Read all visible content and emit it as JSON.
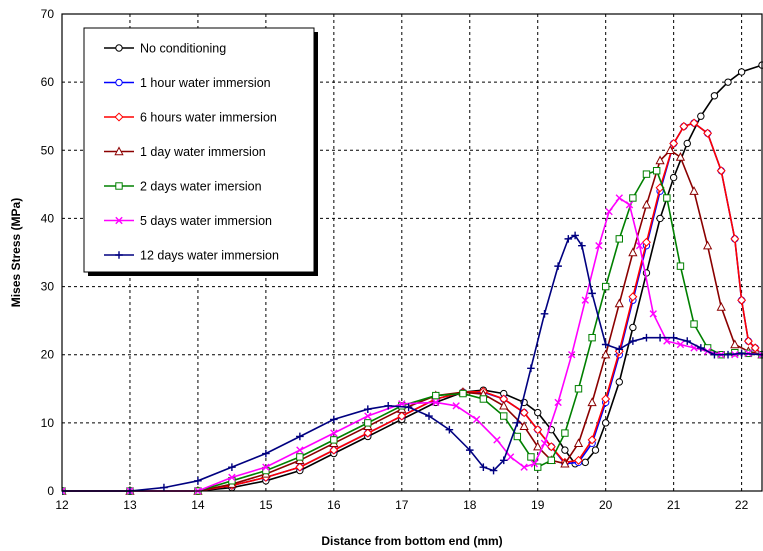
{
  "chart_data": {
    "type": "line",
    "title": "",
    "xlabel": "Distance from bottom end (mm)",
    "ylabel": "Mises Stress (MPa)",
    "xlim": [
      12,
      22.3
    ],
    "ylim": [
      0,
      70
    ],
    "xticks": [
      12,
      13,
      14,
      15,
      16,
      17,
      18,
      19,
      20,
      21,
      22
    ],
    "yticks": [
      0,
      10,
      20,
      30,
      40,
      50,
      60,
      70
    ],
    "grid": true,
    "legend_position": "top-left",
    "series": [
      {
        "name": "No conditioning",
        "color": "#000000",
        "marker": "circle",
        "x": [
          12,
          13,
          14,
          14.5,
          15,
          15.5,
          16,
          16.5,
          17,
          17.5,
          17.9,
          18.2,
          18.5,
          18.8,
          19.0,
          19.2,
          19.4,
          19.55,
          19.7,
          19.85,
          20.0,
          20.2,
          20.4,
          20.6,
          20.8,
          21.0,
          21.2,
          21.4,
          21.6,
          21.8,
          22.0,
          22.3
        ],
        "y": [
          0,
          0,
          0,
          0.5,
          1.5,
          3,
          5.5,
          8,
          10.5,
          13,
          14.5,
          14.8,
          14.3,
          13,
          11.5,
          9,
          6,
          4,
          4.2,
          6,
          10,
          16,
          24,
          32,
          40,
          46,
          51,
          55,
          58,
          60,
          61.5,
          62.5
        ]
      },
      {
        "name": "1 hour water immersion",
        "color": "#0000ff",
        "marker": "circle",
        "x": [
          12,
          13,
          14,
          14.5,
          15,
          15.5,
          16,
          16.5,
          17,
          17.5,
          17.9,
          18.2,
          18.5,
          18.8,
          19.0,
          19.2,
          19.4,
          19.6,
          19.8,
          20.0,
          20.2,
          20.4,
          20.6,
          20.8,
          21.0,
          21.15,
          21.3,
          21.5,
          21.7,
          21.9,
          22.0,
          22.1,
          22.2,
          22.3
        ],
        "y": [
          0,
          0,
          0,
          0.8,
          2,
          3.5,
          6,
          8.5,
          11,
          13.5,
          14.5,
          14.5,
          13.5,
          11.5,
          9,
          6.5,
          4,
          4.2,
          7,
          13,
          20,
          28,
          36,
          44,
          51,
          53.5,
          54,
          52.5,
          47,
          37,
          28,
          22,
          21,
          20
        ]
      },
      {
        "name": "6 hours water immersion",
        "color": "#ff0000",
        "marker": "diamond",
        "x": [
          12,
          13,
          14,
          14.5,
          15,
          15.5,
          16,
          16.5,
          17,
          17.5,
          17.9,
          18.2,
          18.5,
          18.8,
          19.0,
          19.2,
          19.4,
          19.6,
          19.8,
          20.0,
          20.2,
          20.4,
          20.6,
          20.8,
          21.0,
          21.15,
          21.3,
          21.5,
          21.7,
          21.9,
          22.0,
          22.1,
          22.2,
          22.3
        ],
        "y": [
          0,
          0,
          0,
          0.8,
          2,
          3.5,
          6,
          8.5,
          11,
          13.5,
          14.5,
          14.6,
          13.5,
          11.5,
          9,
          6.5,
          4.2,
          4.5,
          7.5,
          13.5,
          20.5,
          28.5,
          36.5,
          44.5,
          51,
          53.5,
          54,
          52.5,
          47,
          37,
          28,
          22,
          21,
          20
        ]
      },
      {
        "name": "1 day water immersion",
        "color": "#8b0000",
        "marker": "triangle",
        "x": [
          12,
          13,
          14,
          14.5,
          15,
          15.5,
          16,
          16.5,
          17,
          17.5,
          17.9,
          18.2,
          18.5,
          18.8,
          19.0,
          19.2,
          19.4,
          19.6,
          19.8,
          20.0,
          20.2,
          20.4,
          20.6,
          20.8,
          20.95,
          21.1,
          21.3,
          21.5,
          21.7,
          21.9,
          22.1,
          22.3
        ],
        "y": [
          0,
          0,
          0,
          1,
          2.5,
          4.5,
          7,
          9.5,
          12,
          14,
          14.5,
          14.2,
          12.5,
          9.5,
          6.5,
          4.5,
          4,
          7,
          13,
          20,
          27.5,
          35,
          42,
          48.5,
          50,
          49,
          44,
          36,
          27,
          21.5,
          20.5,
          20
        ]
      },
      {
        "name": "2 days water imersion",
        "color": "#008000",
        "marker": "square",
        "x": [
          12,
          13,
          14,
          14.5,
          15,
          15.5,
          16,
          16.5,
          17,
          17.5,
          17.9,
          18.2,
          18.5,
          18.7,
          18.9,
          19.0,
          19.2,
          19.4,
          19.6,
          19.8,
          20.0,
          20.2,
          20.4,
          20.6,
          20.75,
          20.9,
          21.1,
          21.3,
          21.5,
          21.7,
          21.9,
          22.1,
          22.3
        ],
        "y": [
          0,
          0,
          0,
          1.5,
          3,
          5,
          7.5,
          10,
          12.5,
          14,
          14.3,
          13.5,
          11,
          8,
          5,
          3.5,
          4.5,
          8.5,
          15,
          22.5,
          30,
          37,
          43,
          46.5,
          47,
          43,
          33,
          24.5,
          21,
          20,
          20.3,
          20.2,
          20
        ]
      },
      {
        "name": "5 days water immersion",
        "color": "#ff00ff",
        "marker": "x",
        "x": [
          12,
          13,
          14,
          14.5,
          15,
          15.5,
          16,
          16.5,
          17,
          17.5,
          17.8,
          18.1,
          18.4,
          18.6,
          18.8,
          18.95,
          19.1,
          19.3,
          19.5,
          19.7,
          19.9,
          20.05,
          20.2,
          20.35,
          20.5,
          20.7,
          20.9,
          21.1,
          21.3,
          21.5,
          21.7,
          21.9,
          22.1,
          22.3
        ],
        "y": [
          0,
          0,
          0,
          2,
          3.5,
          6,
          8.5,
          11,
          12.8,
          13,
          12.5,
          10.5,
          7.5,
          5,
          3.5,
          4,
          7,
          13,
          20,
          28,
          36,
          41,
          43,
          42,
          36,
          26,
          22,
          21.5,
          21,
          20.5,
          20,
          20,
          20.2,
          20
        ]
      },
      {
        "name": "12 days water immersion",
        "color": "#000080",
        "marker": "plus",
        "x": [
          12,
          13,
          13.5,
          14,
          14.5,
          15,
          15.5,
          16,
          16.5,
          16.8,
          17.1,
          17.4,
          17.7,
          18.0,
          18.2,
          18.35,
          18.5,
          18.7,
          18.9,
          19.1,
          19.3,
          19.45,
          19.55,
          19.65,
          19.8,
          20.0,
          20.2,
          20.4,
          20.6,
          20.8,
          21.0,
          21.2,
          21.4,
          21.6,
          21.8,
          22.0,
          22.3
        ],
        "y": [
          0,
          0,
          0.5,
          1.5,
          3.5,
          5.5,
          8,
          10.5,
          12,
          12.5,
          12.3,
          11,
          9,
          6,
          3.5,
          3,
          4.5,
          10,
          18,
          26,
          33,
          37,
          37.5,
          36,
          29,
          21.5,
          20.8,
          22,
          22.5,
          22.5,
          22.5,
          22,
          21,
          20,
          20,
          20.2,
          20
        ]
      }
    ]
  }
}
